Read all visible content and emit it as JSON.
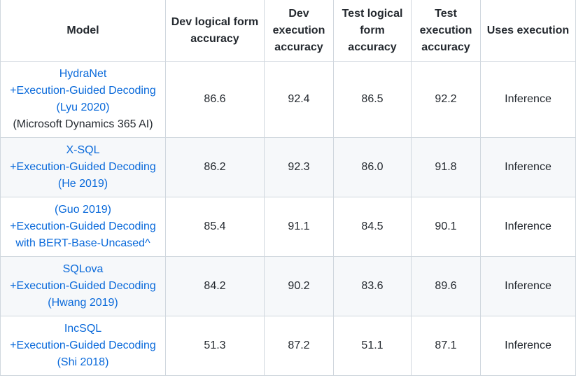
{
  "table": {
    "headers": {
      "model": "Model",
      "dev_logical_form_accuracy": "Dev logical form accuracy",
      "dev_execution_accuracy": "Dev execution accuracy",
      "test_logical_form_accuracy": "Test logical form accuracy",
      "test_execution_accuracy": "Test execution accuracy",
      "uses_execution": "Uses execution"
    },
    "rows": [
      {
        "model_lines": [
          "HydraNet",
          "+Execution-Guided Decoding",
          "(Lyu 2020)"
        ],
        "model_note": "(Microsoft Dynamics 365 AI)",
        "dev_lf": "86.6",
        "dev_ex": "92.4",
        "test_lf": "86.5",
        "test_ex": "92.2",
        "uses_execution": "Inference"
      },
      {
        "model_lines": [
          "X-SQL",
          "+Execution-Guided Decoding",
          "(He 2019)"
        ],
        "model_note": "",
        "dev_lf": "86.2",
        "dev_ex": "92.3",
        "test_lf": "86.0",
        "test_ex": "91.8",
        "uses_execution": "Inference"
      },
      {
        "model_lines": [
          "(Guo 2019)",
          "+Execution-Guided Decoding",
          "with BERT-Base-Uncased^"
        ],
        "model_note": "",
        "dev_lf": "85.4",
        "dev_ex": "91.1",
        "test_lf": "84.5",
        "test_ex": "90.1",
        "uses_execution": "Inference"
      },
      {
        "model_lines": [
          "SQLova",
          "+Execution-Guided Decoding",
          "(Hwang 2019)"
        ],
        "model_note": "",
        "dev_lf": "84.2",
        "dev_ex": "90.2",
        "test_lf": "83.6",
        "test_ex": "89.6",
        "uses_execution": "Inference"
      },
      {
        "model_lines": [
          "IncSQL",
          "+Execution-Guided Decoding",
          "(Shi 2018)"
        ],
        "model_note": "",
        "dev_lf": "51.3",
        "dev_ex": "87.2",
        "test_lf": "51.1",
        "test_ex": "87.1",
        "uses_execution": "Inference"
      }
    ]
  },
  "colors": {
    "link": "#0969da",
    "text": "#24292f",
    "border": "#d0d7de",
    "stripe": "#f6f8fa"
  }
}
